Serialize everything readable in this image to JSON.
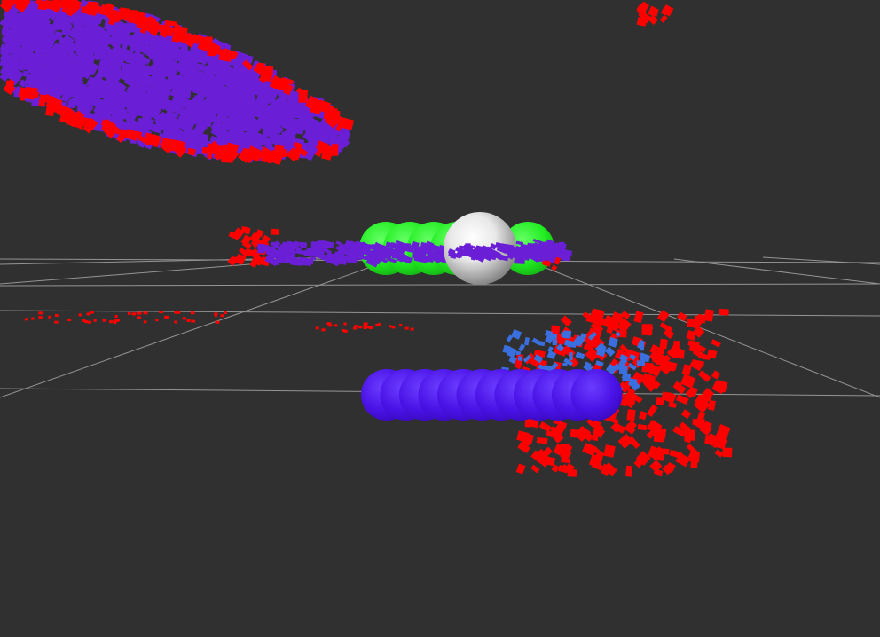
{
  "scene": {
    "view": "3d-render-viewport",
    "background_color": "#303030",
    "grid_color": "#a0a0a0",
    "markers": [
      {
        "name": "obstacle-points",
        "color": "#ff0000"
      },
      {
        "name": "occupied-voxels",
        "color": "#6a1fd6"
      },
      {
        "name": "detected-points",
        "color": "#3a6fe0"
      },
      {
        "name": "trajectory-spheres",
        "color": "#22ee22"
      },
      {
        "name": "robot-sphere",
        "color": "#e8e8e8"
      },
      {
        "name": "goal-spheres",
        "color": "#4a12e6"
      }
    ]
  }
}
